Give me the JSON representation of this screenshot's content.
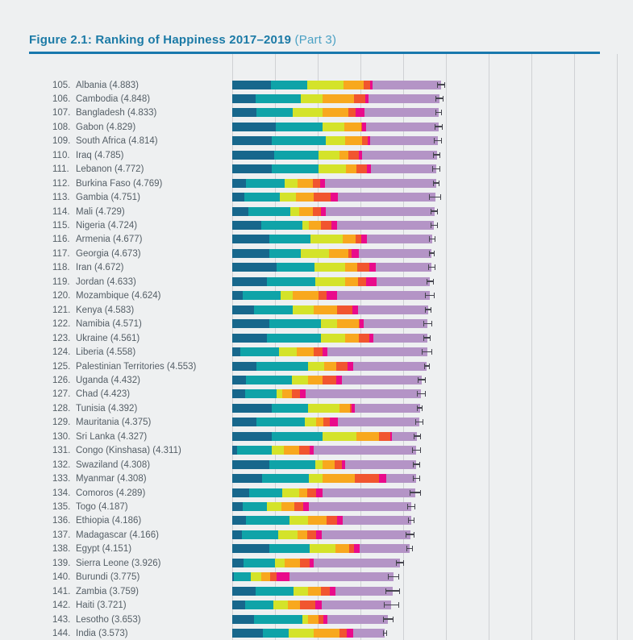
{
  "figure": {
    "title": "Figure 2.1: Ranking of Happiness 2017–2019",
    "part": " (Part 3)"
  },
  "colors": {
    "page_bg": "#eef0f1",
    "title": "#1b7aa6",
    "title_part": "#4ba1c4",
    "rule": "#1878ad",
    "gridline": "#cfd1d4",
    "label_text": "#545e66",
    "whisker": "#45454e"
  },
  "chart_data": {
    "type": "bar",
    "orientation": "horizontal",
    "stacked": true,
    "title": "Figure 2.1: Ranking of Happiness 2017–2019 (Part 3)",
    "xlabel": "",
    "ylabel": "",
    "x_axis": {
      "min": 0,
      "max": 9,
      "gridline_step": 1,
      "tick_labels_visible": false,
      "grid": true
    },
    "legend_visible": false,
    "series_names": [
      "Explained by: GDP per capita",
      "Explained by: social support",
      "Explained by: healthy life expectancy",
      "Explained by: freedom to make life choices",
      "Explained by: generosity",
      "Explained by: perceptions of corruption",
      "Dystopia + residual"
    ],
    "series_colors": [
      "#17678c",
      "#0fa3a8",
      "#d4e32a",
      "#f8a81e",
      "#f1552f",
      "#e90b8b",
      "#b494c6"
    ],
    "whisker_meaning": "95% confidence interval",
    "rows": [
      {
        "rank": "105.",
        "country": "Albania",
        "score": "4.883",
        "values": [
          0.9,
          0.85,
          0.86,
          0.46,
          0.16,
          0.05,
          1.6
        ],
        "ci": 0.09
      },
      {
        "rank": "106.",
        "country": "Cambodia",
        "score": "4.848",
        "values": [
          0.55,
          1.06,
          0.5,
          0.74,
          0.26,
          0.07,
          1.67
        ],
        "ci": 0.09
      },
      {
        "rank": "107.",
        "country": "Bangladesh",
        "score": "4.833",
        "values": [
          0.57,
          0.85,
          0.69,
          0.61,
          0.16,
          0.21,
          1.74
        ],
        "ci": 0.07
      },
      {
        "rank": "108.",
        "country": "Gabon",
        "score": "4.829",
        "values": [
          1.01,
          1.11,
          0.51,
          0.39,
          0.02,
          0.09,
          1.7
        ],
        "ci": 0.09
      },
      {
        "rank": "109.",
        "country": "South Africa",
        "score": "4.814",
        "values": [
          0.92,
          1.26,
          0.47,
          0.38,
          0.14,
          0.06,
          1.58
        ],
        "ci": 0.09
      },
      {
        "rank": "110.",
        "country": "Iraq",
        "score": "4.785",
        "values": [
          0.98,
          1.04,
          0.49,
          0.21,
          0.24,
          0.08,
          1.75
        ],
        "ci": 0.08
      },
      {
        "rank": "111.",
        "country": "Lebanon",
        "score": "4.772",
        "values": [
          0.92,
          1.1,
          0.64,
          0.25,
          0.25,
          0.08,
          1.53
        ],
        "ci": 0.09
      },
      {
        "rank": "112.",
        "country": "Burkina Faso",
        "score": "4.769",
        "values": [
          0.32,
          0.91,
          0.3,
          0.36,
          0.17,
          0.11,
          2.6
        ],
        "ci": 0.08
      },
      {
        "rank": "113.",
        "country": "Gambia",
        "score": "4.751",
        "values": [
          0.29,
          0.82,
          0.38,
          0.41,
          0.41,
          0.16,
          2.28
        ],
        "ci": 0.14
      },
      {
        "rank": "114.",
        "country": "Mali",
        "score": "4.729",
        "values": [
          0.38,
          0.97,
          0.21,
          0.33,
          0.19,
          0.11,
          2.54
        ],
        "ci": 0.09
      },
      {
        "rank": "115.",
        "country": "Nigeria",
        "score": "4.724",
        "values": [
          0.67,
          0.97,
          0.16,
          0.28,
          0.25,
          0.13,
          2.26
        ],
        "ci": 0.08
      },
      {
        "rank": "116.",
        "country": "Armenia",
        "score": "4.677",
        "values": [
          0.86,
          0.97,
          0.75,
          0.31,
          0.13,
          0.14,
          1.52
        ],
        "ci": 0.07
      },
      {
        "rank": "117.",
        "country": "Georgia",
        "score": "4.673",
        "values": [
          0.86,
          0.75,
          0.66,
          0.44,
          0.09,
          0.17,
          1.7
        ],
        "ci": 0.07
      },
      {
        "rank": "118.",
        "country": "Iran",
        "score": "4.672",
        "values": [
          1.04,
          0.88,
          0.72,
          0.28,
          0.28,
          0.16,
          1.31
        ],
        "ci": 0.08
      },
      {
        "rank": "119.",
        "country": "Jordan",
        "score": "4.633",
        "values": [
          0.82,
          1.12,
          0.7,
          0.31,
          0.19,
          0.24,
          1.25
        ],
        "ci": 0.09
      },
      {
        "rank": "120.",
        "country": "Mozambique",
        "score": "4.624",
        "values": [
          0.25,
          0.89,
          0.28,
          0.6,
          0.19,
          0.24,
          2.17
        ],
        "ci": 0.12
      },
      {
        "rank": "121.",
        "country": "Kenya",
        "score": "4.583",
        "values": [
          0.5,
          0.91,
          0.5,
          0.55,
          0.35,
          0.14,
          1.63
        ],
        "ci": 0.08
      },
      {
        "rank": "122.",
        "country": "Namibia",
        "score": "4.571",
        "values": [
          0.87,
          1.21,
          0.38,
          0.5,
          0.03,
          0.09,
          1.49
        ],
        "ci": 0.1
      },
      {
        "rank": "123.",
        "country": "Ukraine",
        "score": "4.561",
        "values": [
          0.82,
          1.26,
          0.57,
          0.31,
          0.25,
          0.09,
          1.26
        ],
        "ci": 0.09
      },
      {
        "rank": "124.",
        "country": "Liberia",
        "score": "4.558",
        "values": [
          0.19,
          0.91,
          0.41,
          0.39,
          0.21,
          0.11,
          2.34
        ],
        "ci": 0.13
      },
      {
        "rank": "125.",
        "country": "Palestinian Territories",
        "score": "4.553",
        "values": [
          0.57,
          1.21,
          0.37,
          0.29,
          0.26,
          0.14,
          1.71
        ],
        "ci": 0.07
      },
      {
        "rank": "126.",
        "country": "Uganda",
        "score": "4.432",
        "values": [
          0.32,
          1.07,
          0.38,
          0.35,
          0.31,
          0.13,
          1.87
        ],
        "ci": 0.1
      },
      {
        "rank": "127.",
        "country": "Chad",
        "score": "4.423",
        "values": [
          0.31,
          0.72,
          0.14,
          0.23,
          0.19,
          0.13,
          2.7
        ],
        "ci": 0.1
      },
      {
        "rank": "128.",
        "country": "Tunisia",
        "score": "4.392",
        "values": [
          0.92,
          0.85,
          0.74,
          0.25,
          0.04,
          0.06,
          1.53
        ],
        "ci": 0.07
      },
      {
        "rank": "129.",
        "country": "Mauritania",
        "score": "4.375",
        "values": [
          0.56,
          1.13,
          0.28,
          0.16,
          0.15,
          0.19,
          1.91
        ],
        "ci": 0.1
      },
      {
        "rank": "130.",
        "country": "Sri Lanka",
        "score": "4.327",
        "values": [
          0.92,
          1.19,
          0.79,
          0.53,
          0.27,
          0.03,
          0.6
        ],
        "ci": 0.09
      },
      {
        "rank": "131.",
        "country": "Congo (Kinshasa)",
        "score": "4.311",
        "values": [
          0.12,
          0.8,
          0.28,
          0.36,
          0.26,
          0.08,
          2.41
        ],
        "ci": 0.1
      },
      {
        "rank": "132.",
        "country": "Swaziland",
        "score": "4.308",
        "values": [
          0.86,
          1.09,
          0.17,
          0.28,
          0.17,
          0.07,
          1.67
        ],
        "ci": 0.08
      },
      {
        "rank": "133.",
        "country": "Myanmar",
        "score": "4.308",
        "values": [
          0.69,
          1.11,
          0.31,
          0.75,
          0.57,
          0.17,
          0.71
        ],
        "ci": 0.08
      },
      {
        "rank": "134.",
        "country": "Comoros",
        "score": "4.289",
        "values": [
          0.4,
          0.77,
          0.4,
          0.19,
          0.21,
          0.14,
          2.18
        ],
        "ci": 0.13
      },
      {
        "rank": "135.",
        "country": "Togo",
        "score": "4.187",
        "values": [
          0.25,
          0.57,
          0.33,
          0.31,
          0.2,
          0.13,
          2.4
        ],
        "ci": 0.1
      },
      {
        "rank": "136.",
        "country": "Ethiopia",
        "score": "4.186",
        "values": [
          0.33,
          1.01,
          0.43,
          0.44,
          0.24,
          0.14,
          1.6
        ],
        "ci": 0.08
      },
      {
        "rank": "137.",
        "country": "Madagascar",
        "score": "4.166",
        "values": [
          0.23,
          0.85,
          0.45,
          0.23,
          0.21,
          0.13,
          2.07
        ],
        "ci": 0.1
      },
      {
        "rank": "138.",
        "country": "Egypt",
        "score": "4.151",
        "values": [
          0.87,
          0.95,
          0.6,
          0.31,
          0.11,
          0.14,
          1.17
        ],
        "ci": 0.07
      },
      {
        "rank": "139.",
        "country": "Sierra Leone",
        "score": "3.926",
        "values": [
          0.26,
          0.74,
          0.23,
          0.36,
          0.23,
          0.09,
          2.02
        ],
        "ci": 0.1
      },
      {
        "rank": "140.",
        "country": "Burundi",
        "score": "3.775",
        "values": [
          0.03,
          0.4,
          0.25,
          0.21,
          0.15,
          0.3,
          2.44
        ],
        "ci": 0.13
      },
      {
        "rank": "141.",
        "country": "Zambia",
        "score": "3.759",
        "values": [
          0.54,
          0.9,
          0.34,
          0.3,
          0.2,
          0.14,
          1.34
        ],
        "ci": 0.17
      },
      {
        "rank": "142.",
        "country": "Haiti",
        "score": "3.721",
        "values": [
          0.31,
          0.65,
          0.35,
          0.28,
          0.35,
          0.15,
          1.63
        ],
        "ci": 0.18
      },
      {
        "rank": "143.",
        "country": "Lesotho",
        "score": "3.653",
        "values": [
          0.51,
          1.13,
          0.13,
          0.25,
          0.11,
          0.09,
          1.43
        ],
        "ci": 0.12
      },
      {
        "rank": "144.",
        "country": "India",
        "score": "3.573",
        "values": [
          0.71,
          0.62,
          0.57,
          0.61,
          0.17,
          0.16,
          0.73
        ],
        "ci": 0.05
      }
    ]
  }
}
